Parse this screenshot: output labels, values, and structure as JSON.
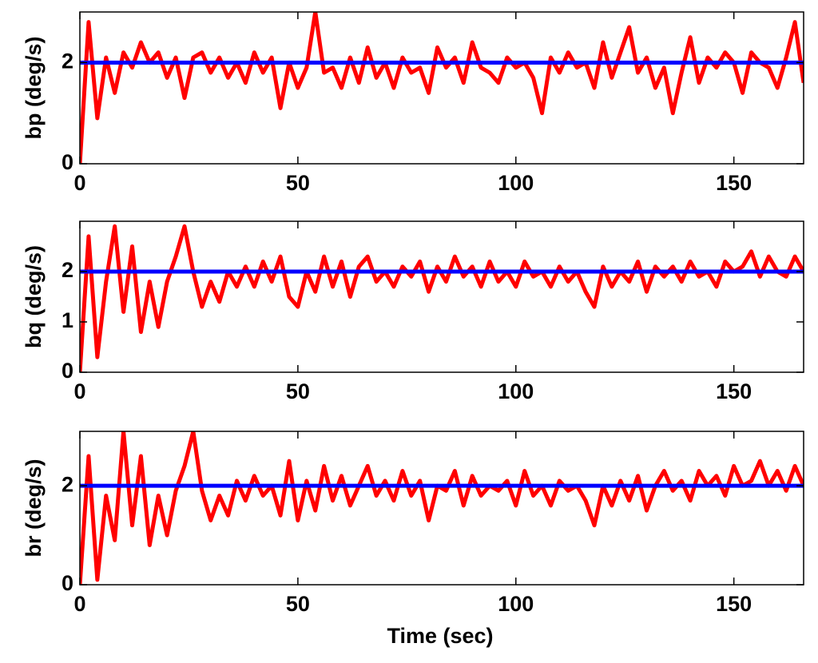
{
  "chart_data": [
    {
      "type": "line",
      "ylabel": "bp (deg/s)",
      "x": [
        0,
        2,
        4,
        6,
        8,
        10,
        12,
        14,
        16,
        18,
        20,
        22,
        24,
        26,
        28,
        30,
        32,
        34,
        36,
        38,
        40,
        42,
        44,
        46,
        48,
        50,
        52,
        54,
        56,
        58,
        60,
        62,
        64,
        66,
        68,
        70,
        72,
        74,
        76,
        78,
        80,
        82,
        84,
        86,
        88,
        90,
        92,
        94,
        96,
        98,
        100,
        102,
        104,
        106,
        108,
        110,
        112,
        114,
        116,
        118,
        120,
        122,
        124,
        126,
        128,
        130,
        132,
        134,
        136,
        138,
        140,
        142,
        144,
        146,
        148,
        150,
        152,
        154,
        156,
        158,
        160,
        162,
        164,
        166
      ],
      "series": [
        {
          "color": "#ff0000",
          "values": [
            0,
            2.8,
            0.9,
            2.1,
            1.4,
            2.2,
            1.9,
            2.4,
            2.0,
            2.2,
            1.7,
            2.1,
            1.3,
            2.1,
            2.2,
            1.8,
            2.1,
            1.7,
            2.0,
            1.6,
            2.2,
            1.8,
            2.1,
            1.1,
            2.0,
            1.5,
            1.9,
            3.0,
            1.8,
            1.9,
            1.5,
            2.1,
            1.6,
            2.3,
            1.7,
            2.0,
            1.5,
            2.1,
            1.8,
            1.9,
            1.4,
            2.3,
            1.9,
            2.1,
            1.6,
            2.4,
            1.9,
            1.8,
            1.6,
            2.1,
            1.9,
            2.0,
            1.7,
            1.0,
            2.1,
            1.8,
            2.2,
            1.9,
            2.0,
            1.5,
            2.4,
            1.7,
            2.2,
            2.7,
            1.8,
            2.1,
            1.5,
            1.9,
            1.0,
            1.8,
            2.5,
            1.6,
            2.1,
            1.9,
            2.2,
            2.0,
            1.4,
            2.2,
            2.0,
            1.9,
            1.5,
            2.1,
            2.8,
            1.6
          ]
        },
        {
          "color": "#0000ff",
          "x": [
            0,
            166
          ],
          "values": [
            2,
            2
          ]
        }
      ],
      "xlim": [
        0,
        166
      ],
      "xticks": [
        0,
        50,
        100,
        150
      ],
      "ylim": [
        0,
        3
      ],
      "yticks": [
        0,
        2
      ]
    },
    {
      "type": "line",
      "ylabel": "bq (deg/s)",
      "x": [
        0,
        2,
        4,
        6,
        8,
        10,
        12,
        14,
        16,
        18,
        20,
        22,
        24,
        26,
        28,
        30,
        32,
        34,
        36,
        38,
        40,
        42,
        44,
        46,
        48,
        50,
        52,
        54,
        56,
        58,
        60,
        62,
        64,
        66,
        68,
        70,
        72,
        74,
        76,
        78,
        80,
        82,
        84,
        86,
        88,
        90,
        92,
        94,
        96,
        98,
        100,
        102,
        104,
        106,
        108,
        110,
        112,
        114,
        116,
        118,
        120,
        122,
        124,
        126,
        128,
        130,
        132,
        134,
        136,
        138,
        140,
        142,
        144,
        146,
        148,
        150,
        152,
        154,
        156,
        158,
        160,
        162,
        164,
        166
      ],
      "series": [
        {
          "color": "#ff0000",
          "values": [
            0,
            2.7,
            0.3,
            1.8,
            2.9,
            1.2,
            2.5,
            0.8,
            1.8,
            0.9,
            1.8,
            2.3,
            2.9,
            2.0,
            1.3,
            1.8,
            1.4,
            2.0,
            1.7,
            2.1,
            1.7,
            2.2,
            1.8,
            2.3,
            1.5,
            1.3,
            2.0,
            1.6,
            2.3,
            1.7,
            2.2,
            1.5,
            2.1,
            2.3,
            1.8,
            2.0,
            1.7,
            2.1,
            1.9,
            2.2,
            1.6,
            2.1,
            1.8,
            2.3,
            1.9,
            2.1,
            1.7,
            2.2,
            1.8,
            2.0,
            1.7,
            2.2,
            1.9,
            2.0,
            1.7,
            2.1,
            1.8,
            2.0,
            1.6,
            1.3,
            2.1,
            1.7,
            2.0,
            1.8,
            2.2,
            1.6,
            2.1,
            1.9,
            2.1,
            1.8,
            2.2,
            1.9,
            2.0,
            1.7,
            2.2,
            2.0,
            2.1,
            2.4,
            1.9,
            2.3,
            2.0,
            1.9,
            2.3,
            2.0
          ]
        },
        {
          "color": "#0000ff",
          "x": [
            0,
            166
          ],
          "values": [
            2,
            2
          ]
        }
      ],
      "xlim": [
        0,
        166
      ],
      "xticks": [
        0,
        50,
        100,
        150
      ],
      "ylim": [
        0,
        3
      ],
      "yticks": [
        0,
        1,
        2
      ]
    },
    {
      "type": "line",
      "ylabel": "br (deg/s)",
      "xlabel": "Time (sec)",
      "x": [
        0,
        2,
        4,
        6,
        8,
        10,
        12,
        14,
        16,
        18,
        20,
        22,
        24,
        26,
        28,
        30,
        32,
        34,
        36,
        38,
        40,
        42,
        44,
        46,
        48,
        50,
        52,
        54,
        56,
        58,
        60,
        62,
        64,
        66,
        68,
        70,
        72,
        74,
        76,
        78,
        80,
        82,
        84,
        86,
        88,
        90,
        92,
        94,
        96,
        98,
        100,
        102,
        104,
        106,
        108,
        110,
        112,
        114,
        116,
        118,
        120,
        122,
        124,
        126,
        128,
        130,
        132,
        134,
        136,
        138,
        140,
        142,
        144,
        146,
        148,
        150,
        152,
        154,
        156,
        158,
        160,
        162,
        164,
        166
      ],
      "series": [
        {
          "color": "#ff0000",
          "values": [
            0,
            2.6,
            0.1,
            1.8,
            0.9,
            3.1,
            1.2,
            2.6,
            0.8,
            1.8,
            1.0,
            1.9,
            2.4,
            3.1,
            1.9,
            1.3,
            1.8,
            1.4,
            2.1,
            1.7,
            2.2,
            1.8,
            2.0,
            1.4,
            2.5,
            1.3,
            2.1,
            1.5,
            2.4,
            1.7,
            2.2,
            1.6,
            2.0,
            2.4,
            1.8,
            2.1,
            1.7,
            2.3,
            1.8,
            2.1,
            1.3,
            2.0,
            1.9,
            2.3,
            1.6,
            2.2,
            1.8,
            2.0,
            1.9,
            2.1,
            1.6,
            2.3,
            1.8,
            2.0,
            1.6,
            2.1,
            1.9,
            2.0,
            1.7,
            1.2,
            2.0,
            1.6,
            2.1,
            1.7,
            2.2,
            1.5,
            2.0,
            2.3,
            1.9,
            2.1,
            1.7,
            2.3,
            2.0,
            2.2,
            1.8,
            2.4,
            2.0,
            2.1,
            2.5,
            2.0,
            2.3,
            1.9,
            2.4,
            2.0
          ]
        },
        {
          "color": "#0000ff",
          "x": [
            0,
            166
          ],
          "values": [
            2,
            2
          ]
        }
      ],
      "xlim": [
        0,
        166
      ],
      "xticks": [
        0,
        50,
        100,
        150
      ],
      "ylim": [
        0,
        3.1
      ],
      "yticks": [
        0,
        2
      ]
    }
  ]
}
